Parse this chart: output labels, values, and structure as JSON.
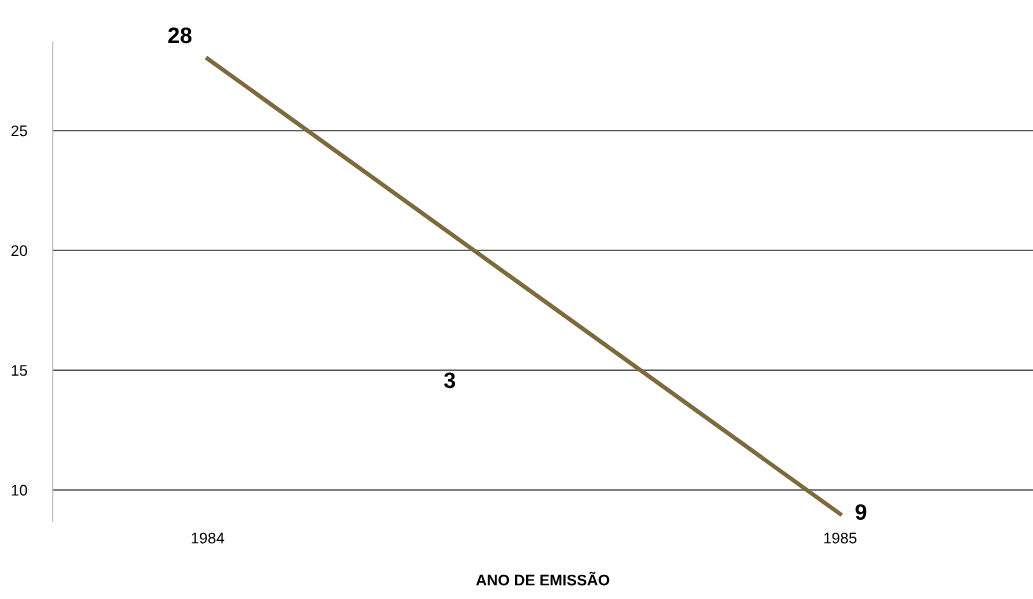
{
  "chart_data": {
    "type": "line",
    "xlabel": "ANO DE EMISSÃO",
    "categories": [
      "1984",
      "1985"
    ],
    "series": [
      {
        "color": "#7d6a3c",
        "values": [
          28,
          9
        ]
      }
    ],
    "data_labels": true,
    "ylim": [
      8.7,
      28.7
    ],
    "yticks": [
      10,
      15,
      20,
      25
    ],
    "grid": "y",
    "marker": "none",
    "line_style": "solid",
    "annotations": [
      "3"
    ]
  }
}
